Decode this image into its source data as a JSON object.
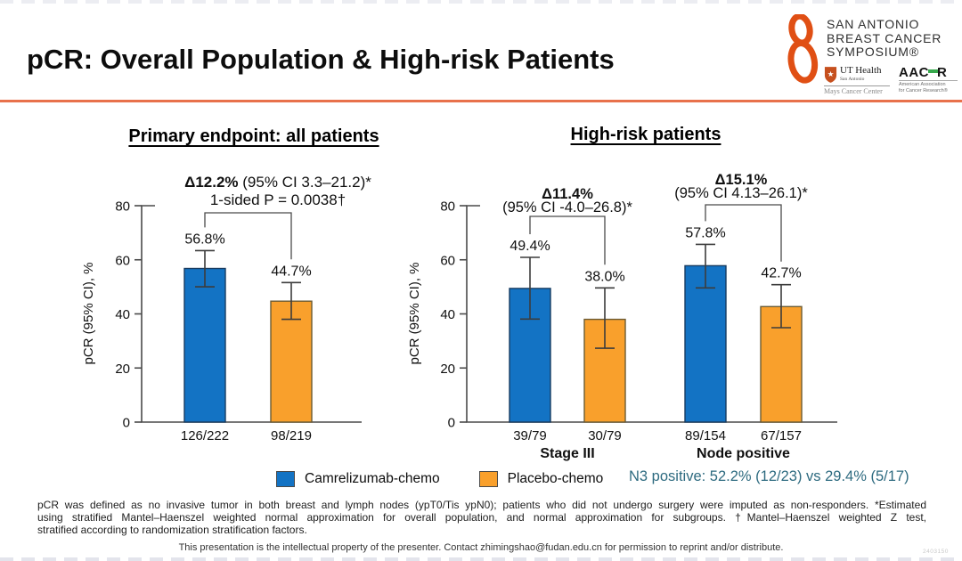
{
  "slide": {
    "title": "pCR: Overall Population & High-risk Patients",
    "n3_note": "N3 positive: 52.2% (12/23) vs 29.4% (5/17)",
    "footnote_lines": [
      "pCR was defined as no invasive tumor in both breast and lymph nodes (ypT0/Tis ypN0); patients who did not undergo surgery were imputed as non-responders. *Estimated",
      "using stratified Mantel–Haenszel weighted normal approximation for overall population, and normal approximation for subgroups. †Mantel–Haenszel weighted Z test,",
      "stratified according to randomization stratification factors."
    ],
    "disclaimer": "This presentation is the intellectual property of the presenter. Contact zhimingshao@fudan.edu.cn for permission to reprint and/or distribute.",
    "watermark": "2403150"
  },
  "logo": {
    "org_lines": [
      "SAN ANTONIO",
      "BREAST CANCER",
      "SYMPOSIUM®"
    ],
    "uthealth": {
      "name": "UT Health",
      "city": "San Antonio",
      "center": "Mays Cancer Center"
    },
    "aacr": {
      "left": "AAC",
      "right": "R",
      "sub1": "American Association",
      "sub2": "for Cancer Research®"
    }
  },
  "legend": [
    {
      "label": "Camrelizumab-chemo",
      "color": "#1373C4",
      "stroke": "#173B60"
    },
    {
      "label": "Placebo-chemo",
      "color": "#F9A02C",
      "stroke": "#6B5B33"
    }
  ],
  "colors": {
    "accent_rule": "#E8714B",
    "note_text": "#2E6B80",
    "sabcs_orange": "#E04F14",
    "ut_orange": "#C6501E",
    "aacr_green": "#36A94C",
    "axis": "#4A4A4A",
    "error_bar": "#3C3C3C",
    "text": "#101010"
  },
  "chart_data": [
    {
      "type": "bar",
      "title": "Primary endpoint: all patients",
      "ylabel": "pCR (95% CI), %",
      "ylim": [
        0,
        80
      ],
      "yticks": [
        0,
        20,
        40,
        60,
        80
      ],
      "grid": false,
      "legend_position": "bottom",
      "groups": [
        {
          "name": "",
          "bars": [
            {
              "series": "Camrelizumab-chemo",
              "category": "126/222",
              "value": 56.8,
              "value_label": "56.8%",
              "ci": [
                50.0,
                63.4
              ]
            },
            {
              "series": "Placebo-chemo",
              "category": "98/219",
              "value": 44.7,
              "value_label": "44.7%",
              "ci": [
                38.0,
                51.6
              ]
            }
          ],
          "annotation": {
            "bold": "Δ12.2%",
            "rest": " (95% CI 3.3–21.2)*",
            "line2": "1-sided P = 0.0038†"
          }
        }
      ]
    },
    {
      "type": "bar",
      "title": "High-risk patients",
      "ylabel": "pCR (95% CI), %",
      "ylim": [
        0,
        80
      ],
      "yticks": [
        0,
        20,
        40,
        60,
        80
      ],
      "grid": false,
      "legend_position": "bottom",
      "groups": [
        {
          "name": "Stage III",
          "bars": [
            {
              "series": "Camrelizumab-chemo",
              "category": "39/79",
              "value": 49.4,
              "value_label": "49.4%",
              "ci": [
                38.1,
                60.9
              ]
            },
            {
              "series": "Placebo-chemo",
              "category": "30/79",
              "value": 38.0,
              "value_label": "38.0%",
              "ci": [
                27.3,
                49.6
              ]
            }
          ],
          "annotation": {
            "bold": "Δ11.4%",
            "rest": "",
            "line2": "(95% CI -4.0–26.8)*"
          }
        },
        {
          "name": "Node positive",
          "bars": [
            {
              "series": "Camrelizumab-chemo",
              "category": "89/154",
              "value": 57.8,
              "value_label": "57.8%",
              "ci": [
                49.6,
                65.7
              ]
            },
            {
              "series": "Placebo-chemo",
              "category": "67/157",
              "value": 42.7,
              "value_label": "42.7%",
              "ci": [
                34.9,
                50.8
              ]
            }
          ],
          "annotation": {
            "bold": "Δ15.1%",
            "rest": "",
            "line2": "(95% CI 4.13–26.1)*"
          }
        }
      ]
    }
  ]
}
